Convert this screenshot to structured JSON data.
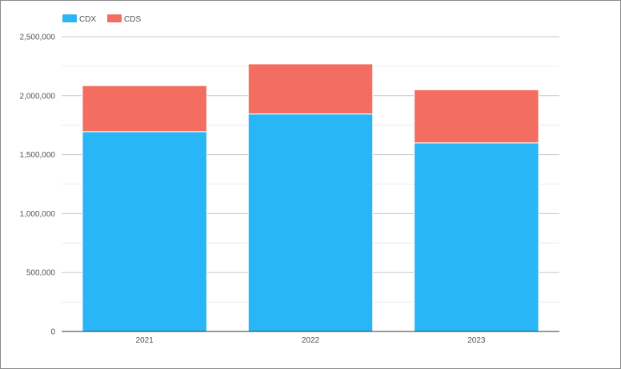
{
  "chart_data": {
    "type": "bar",
    "stacked": true,
    "title": "",
    "xlabel": "",
    "ylabel": "",
    "categories": [
      "2021",
      "2022",
      "2023"
    ],
    "series": [
      {
        "name": "CDX",
        "color": "#29b6f6",
        "values": [
          1695000,
          1845000,
          1600000
        ]
      },
      {
        "name": "CDS",
        "color": "#f36e60",
        "values": [
          390000,
          425000,
          450000
        ]
      }
    ],
    "ylim": [
      0,
      2500000
    ],
    "yticks": [
      0,
      500000,
      1000000,
      1500000,
      2000000,
      2500000
    ],
    "ytick_labels": [
      "0",
      "500,000",
      "1,000,000",
      "1,500,000",
      "2,000,000",
      "2,500,000"
    ],
    "grid": true,
    "minor_grid": true,
    "legend_position": "top-left"
  }
}
